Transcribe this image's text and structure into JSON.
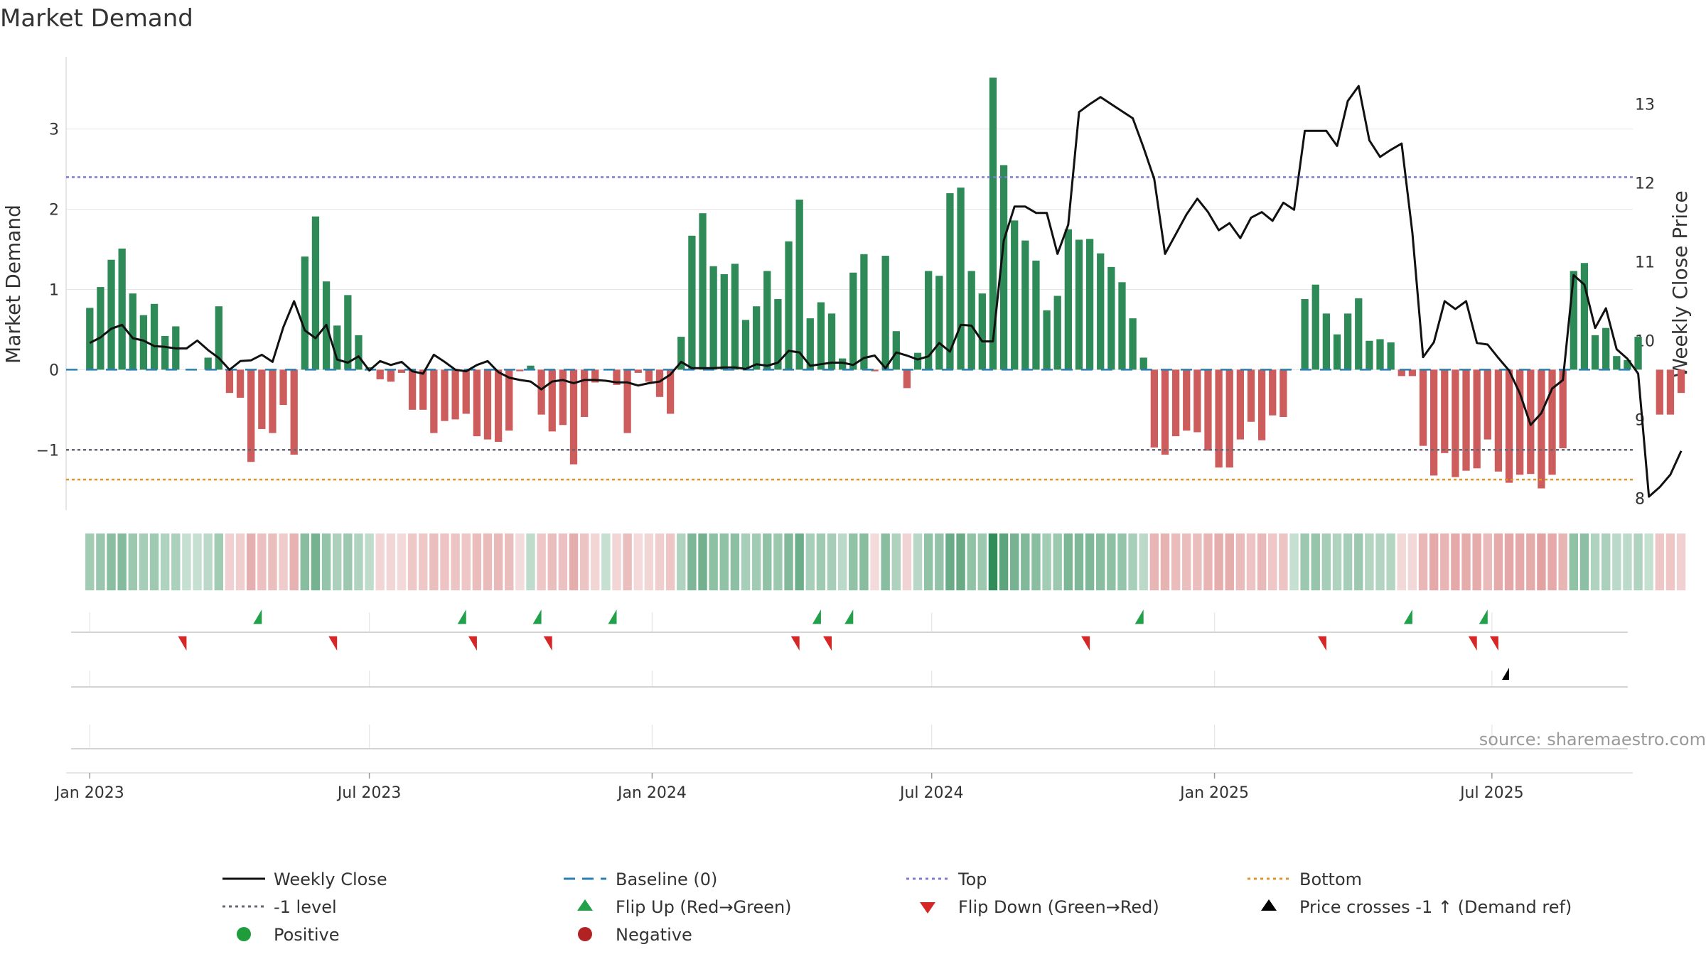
{
  "chart_data": {
    "type": "bar",
    "title": "Market Demand",
    "ylabel_left": "Market Demand",
    "ylabel_right": "Weekly Close Price",
    "source_note": "source: sharemaestro.com",
    "left_axis": {
      "ylim": [
        -1.75,
        3.9
      ],
      "ticks": [
        {
          "value": 3,
          "label": "3"
        },
        {
          "value": 2,
          "label": "2"
        },
        {
          "value": 1,
          "label": "1"
        },
        {
          "value": 0,
          "label": "0"
        },
        {
          "value": -1,
          "label": "−1"
        }
      ]
    },
    "right_axis": {
      "ylim": [
        7.85,
        13.6
      ],
      "ticks": [
        {
          "value": 13,
          "label": "13"
        },
        {
          "value": 12,
          "label": "12"
        },
        {
          "value": 11,
          "label": "11"
        },
        {
          "value": 10,
          "label": "10"
        },
        {
          "value": 9,
          "label": "9"
        },
        {
          "value": 8,
          "label": "8"
        }
      ]
    },
    "x_axis": {
      "range": [
        -2.2,
        143.5
      ],
      "ticks": [
        {
          "week": 0,
          "label": "Jan 2023"
        },
        {
          "week": 26,
          "label": "Jul 2023"
        },
        {
          "week": 52.3,
          "label": "Jan 2024"
        },
        {
          "week": 78.3,
          "label": "Jul 2024"
        },
        {
          "week": 104.6,
          "label": "Jan 2025"
        },
        {
          "week": 130.4,
          "label": "Jul 2025"
        }
      ]
    },
    "reference_lines": {
      "top": 2.4,
      "bottom": -1.37,
      "minus_one": -1.0,
      "baseline": 0
    },
    "demand": [
      0.77,
      1.03,
      1.37,
      1.51,
      0.95,
      0.68,
      0.82,
      0.42,
      0.54,
      0.0,
      0.0,
      0.15,
      0.79,
      -0.29,
      -0.35,
      -1.15,
      -0.74,
      -0.79,
      -0.44,
      -1.06,
      1.41,
      1.91,
      1.1,
      0.55,
      0.93,
      0.43,
      0.03,
      -0.12,
      -0.15,
      -0.04,
      -0.5,
      -0.5,
      -0.79,
      -0.64,
      -0.62,
      -0.55,
      -0.83,
      -0.87,
      -0.9,
      -0.76,
      -0.02,
      0.05,
      -0.56,
      -0.77,
      -0.69,
      -1.18,
      -0.59,
      -0.16,
      0.0,
      -0.19,
      -0.79,
      -0.04,
      -0.15,
      -0.34,
      -0.55,
      0.41,
      1.67,
      1.95,
      1.29,
      1.19,
      1.32,
      0.62,
      0.79,
      1.23,
      0.88,
      1.6,
      2.12,
      0.64,
      0.84,
      0.7,
      0.14,
      1.21,
      1.44,
      -0.02,
      1.42,
      0.48,
      -0.23,
      0.21,
      1.23,
      1.17,
      2.2,
      2.27,
      1.23,
      0.95,
      3.64,
      2.55,
      1.86,
      1.61,
      1.36,
      0.74,
      0.92,
      1.75,
      1.62,
      1.63,
      1.45,
      1.28,
      1.09,
      0.64,
      0.15,
      -0.97,
      -1.06,
      -0.83,
      -0.76,
      -0.78,
      -1.01,
      -1.22,
      -1.22,
      -0.87,
      -0.65,
      -0.88,
      -0.57,
      -0.59,
      0.0,
      0.88,
      1.06,
      0.7,
      0.44,
      0.7,
      0.89,
      0.36,
      0.38,
      0.34,
      -0.08,
      -0.08,
      -0.95,
      -1.32,
      -1.04,
      -1.34,
      -1.26,
      -1.23,
      -0.87,
      -1.27,
      -1.41,
      -1.31,
      -1.3,
      -1.48,
      -1.31,
      -0.98,
      1.23,
      1.33,
      0.43,
      0.52,
      0.17,
      0.12,
      0.41,
      0.0,
      -0.56,
      -0.56,
      -0.29
    ],
    "weekly_close": [
      9.97,
      10.04,
      10.15,
      10.2,
      10.03,
      10.0,
      9.93,
      9.92,
      9.9,
      9.9,
      10.0,
      9.88,
      9.78,
      9.63,
      9.74,
      9.75,
      9.82,
      9.73,
      10.17,
      10.5,
      10.13,
      10.03,
      10.2,
      9.76,
      9.72,
      9.8,
      9.62,
      9.74,
      9.69,
      9.73,
      9.61,
      9.58,
      9.82,
      9.73,
      9.63,
      9.61,
      9.69,
      9.74,
      9.6,
      9.53,
      9.5,
      9.48,
      9.38,
      9.48,
      9.5,
      9.46,
      9.5,
      9.5,
      9.49,
      9.47,
      9.47,
      9.43,
      9.46,
      9.48,
      9.57,
      9.73,
      9.65,
      9.65,
      9.65,
      9.66,
      9.66,
      9.64,
      9.7,
      9.68,
      9.72,
      9.87,
      9.85,
      9.68,
      9.7,
      9.72,
      9.72,
      9.69,
      9.78,
      9.81,
      9.65,
      9.85,
      9.81,
      9.76,
      9.8,
      9.97,
      9.86,
      10.2,
      10.19,
      9.99,
      9.99,
      11.27,
      11.7,
      11.7,
      11.62,
      11.62,
      11.1,
      11.47,
      12.9,
      13.0,
      13.09,
      13.0,
      12.91,
      12.82,
      12.45,
      12.05,
      11.1,
      11.35,
      11.6,
      11.8,
      11.63,
      11.4,
      11.49,
      11.3,
      11.56,
      11.63,
      11.52,
      11.75,
      11.66,
      12.66,
      12.66,
      12.66,
      12.47,
      13.04,
      13.23,
      12.54,
      12.33,
      12.42,
      12.5,
      11.37,
      9.79,
      9.98,
      10.5,
      10.4,
      10.5,
      9.97,
      9.95,
      9.78,
      9.62,
      9.33,
      8.93,
      9.08,
      9.39,
      9.5,
      10.83,
      10.71,
      10.16,
      10.41,
      9.89,
      9.77,
      9.58,
      8.02,
      8.14,
      8.3,
      8.6
    ],
    "flip_up_weeks": [
      16,
      35,
      42,
      49,
      68,
      71,
      98,
      123,
      130
    ],
    "flip_down_weeks": [
      9,
      23,
      36,
      43,
      66,
      69,
      93,
      115,
      129,
      131
    ],
    "price_cross_weeks": [
      132
    ],
    "legend": {
      "weekly_close": "Weekly Close",
      "baseline": "Baseline (0)",
      "top": "Top",
      "bottom": "Bottom",
      "minus_one": "-1 level",
      "flip_up": "Flip Up (Red→Green)",
      "flip_down": "Flip Down (Green→Red)",
      "price_cross": "Price crosses -1 ↑ (Demand ref)",
      "positive": "Positive",
      "negative": "Negative"
    },
    "colors": {
      "positive": "#2e8b57",
      "negative": "#cd5c5c",
      "price": "#111111",
      "top": "#7b7bd6",
      "bottom": "#e0952a",
      "minus_one": "#666677",
      "baseline": "#2a7fb5",
      "flip_up": "#22a04a",
      "flip_down": "#d62728",
      "price_cross": "#000000",
      "legend_positive": "#1f9d3a",
      "legend_negative": "#b22222",
      "grid": "#e6e6e6",
      "source": "#999999"
    }
  }
}
